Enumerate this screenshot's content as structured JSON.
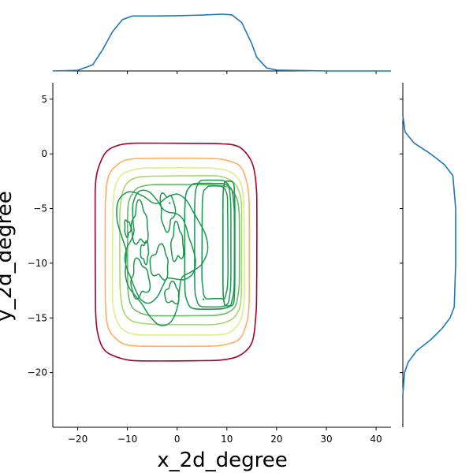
{
  "chart_data": {
    "type": "kde_joint",
    "xlabel": "x_2d_degree",
    "ylabel": "y_2d_degree",
    "xlim": [
      -25,
      43
    ],
    "ylim": [
      -25,
      6.5
    ],
    "x_ticks": [
      -20,
      -10,
      0,
      10,
      20,
      30,
      40
    ],
    "y_ticks": [
      5,
      0,
      -5,
      -10,
      -15,
      -20
    ],
    "x_tick_labels": [
      "−20",
      "−10",
      "0",
      "10",
      "20",
      "30",
      "40"
    ],
    "y_tick_labels": [
      "5",
      "0",
      "−5",
      "−10",
      "−15",
      "−20"
    ],
    "marginal_color": "#1f77b4",
    "contour_levels": [
      {
        "color": "#a50026",
        "rect": [
          -16.5,
          16,
          -18.9,
          1.0
        ]
      },
      {
        "color": "#fdae61",
        "rect": [
          -14.5,
          14.5,
          -17.6,
          -0.4
        ]
      },
      {
        "color": "#d9ef8b",
        "rect": [
          -13,
          13.5,
          -16.6,
          -1.3
        ]
      },
      {
        "color": "#a6d96a",
        "rect": [
          -11.5,
          13,
          -15.6,
          -2.0
        ]
      },
      {
        "color": "#66bd63",
        "rect": [
          -10,
          12.5,
          -14.8,
          -2.8
        ]
      },
      {
        "color": "#1a9850",
        "rect": [
          1.5,
          11.5,
          -14.2,
          -2.7
        ]
      }
    ],
    "marginal_x": {
      "x": [
        -25,
        -20,
        -17,
        -15,
        -13,
        -11,
        -9,
        -5,
        0,
        5,
        9,
        11,
        13,
        15,
        16,
        18,
        20,
        30,
        43
      ],
      "density": [
        0,
        0.002,
        0.02,
        0.07,
        0.13,
        0.17,
        0.182,
        0.182,
        0.183,
        0.185,
        0.188,
        0.186,
        0.16,
        0.09,
        0.045,
        0.01,
        0.003,
        0,
        0
      ]
    },
    "marginal_y": {
      "y": [
        3.5,
        2.0,
        1.0,
        0.0,
        -1.0,
        -2.0,
        -5,
        -10,
        -14,
        -15,
        -16,
        -17,
        -18,
        -19,
        -20,
        -22
      ],
      "density": [
        0,
        0.008,
        0.04,
        0.1,
        0.15,
        0.18,
        0.19,
        0.19,
        0.185,
        0.17,
        0.14,
        0.1,
        0.05,
        0.02,
        0.006,
        0
      ]
    }
  }
}
